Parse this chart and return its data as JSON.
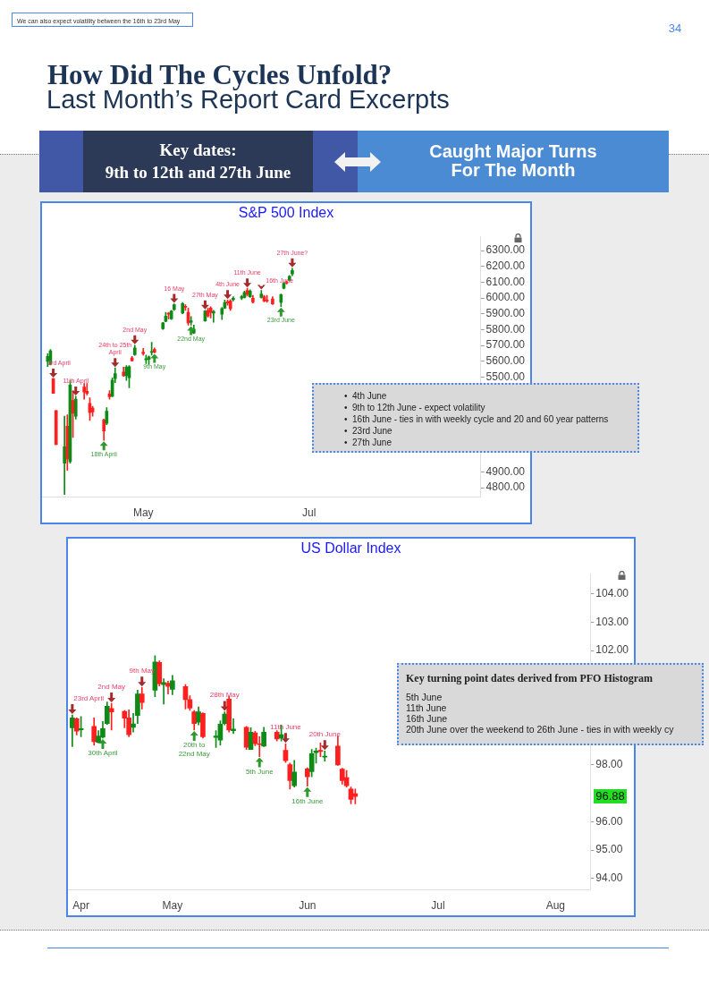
{
  "chart_data": [
    {
      "type": "other",
      "title": "How Did The Cycles Unfold?",
      "subtitle": "Last Month’s Report Card Excerpts",
      "annotations": [
        "We can also expect volatility between the 16th to 23rd May",
        "34",
        "Key dates:\n9th to 12th and 27th June",
        "Caught Major Turns\nFor The Month"
      ]
    },
    {
      "type": "candlestick",
      "title": "S&P 500 Index",
      "x": [
        "--04-01",
        "--04-02",
        "--04-03",
        "--04-04",
        "--04-07",
        "--04-08",
        "--04-09",
        "--04-10",
        "--04-11",
        "--04-14",
        "--04-15",
        "--04-16",
        "--04-17",
        "--04-21",
        "--04-22",
        "--04-23",
        "--04-24",
        "--04-25",
        "--04-28",
        "--04-29",
        "--04-30",
        "--05-01",
        "--05-02",
        "--05-05",
        "--05-06",
        "--05-07",
        "--05-08",
        "--05-09",
        "--05-12",
        "--05-13",
        "--05-14",
        "--05-15",
        "--05-16",
        "--05-19",
        "--05-20",
        "--05-21",
        "--05-22",
        "--05-23",
        "--05-27",
        "--05-28",
        "--05-29",
        "--05-30",
        "--06-02",
        "--06-03",
        "--06-04",
        "--06-05",
        "--06-06",
        "--06-09",
        "--06-10",
        "--06-11",
        "--06-12",
        "--06-13",
        "--06-16",
        "--06-17",
        "--06-18",
        "--06-20",
        "--06-23",
        "--06-24",
        "--06-25",
        "--06-26",
        "--06-27"
      ],
      "ohlc": [
        [
          5599,
          5648,
          5567,
          5630
        ],
        [
          5580,
          5675,
          5576,
          5666
        ],
        [
          5491,
          5491,
          5396,
          5396
        ],
        [
          5288,
          5288,
          5072,
          5072
        ],
        [
          4955,
          5252,
          4757,
          5058
        ],
        [
          5189,
          5261,
          4910,
          4982
        ],
        [
          4964,
          5477,
          4955,
          5450
        ],
        [
          5351,
          5414,
          5117,
          5270
        ],
        [
          5252,
          5378,
          5234,
          5360
        ],
        [
          5436,
          5459,
          5360,
          5405
        ],
        [
          5409,
          5459,
          5387,
          5396
        ],
        [
          5333,
          5369,
          5225,
          5274
        ],
        [
          5303,
          5315,
          5252,
          5279
        ],
        [
          5229,
          5234,
          5099,
          5159
        ],
        [
          5207,
          5306,
          5198,
          5284
        ],
        [
          5393,
          5414,
          5360,
          5375
        ],
        [
          5378,
          5495,
          5375,
          5481
        ],
        [
          5490,
          5558,
          5465,
          5522
        ],
        [
          5531,
          5562,
          5504,
          5508
        ],
        [
          5508,
          5573,
          5478,
          5562
        ],
        [
          5495,
          5573,
          5432,
          5565
        ],
        [
          5621,
          5630,
          5600,
          5603
        ],
        [
          5641,
          5702,
          5637,
          5684
        ],
        [
          5657,
          5681,
          5639,
          5648
        ],
        [
          5609,
          5639,
          5585,
          5616
        ],
        [
          5612,
          5634,
          5580,
          5627
        ],
        [
          5655,
          5720,
          5639,
          5662
        ],
        [
          5675,
          5684,
          5652,
          5657
        ],
        [
          5805,
          5846,
          5801,
          5843
        ],
        [
          5852,
          5909,
          5850,
          5886
        ],
        [
          5904,
          5909,
          5868,
          5897
        ],
        [
          5868,
          5922,
          5864,
          5918
        ],
        [
          5927,
          5963,
          5922,
          5958
        ],
        [
          5904,
          5972,
          5900,
          5965
        ],
        [
          5945,
          5958,
          5922,
          5942
        ],
        [
          5909,
          5936,
          5828,
          5843
        ],
        [
          5846,
          5882,
          5828,
          5855
        ],
        [
          5778,
          5828,
          5774,
          5803
        ],
        [
          5855,
          5922,
          5852,
          5918
        ],
        [
          5922,
          5936,
          5879,
          5886
        ],
        [
          5936,
          5945,
          5873,
          5909
        ],
        [
          5904,
          5922,
          5846,
          5915
        ],
        [
          5897,
          5940,
          5864,
          5933
        ],
        [
          5936,
          5987,
          5933,
          5972
        ],
        [
          5976,
          5987,
          5954,
          5969
        ],
        [
          5981,
          5990,
          5922,
          5933
        ],
        [
          5990,
          6008,
          5981,
          5999
        ],
        [
          5999,
          6017,
          5990,
          6008
        ],
        [
          6004,
          6044,
          5999,
          6035
        ],
        [
          6048,
          6062,
          6012,
          6022
        ],
        [
          6008,
          6053,
          6004,
          6044
        ],
        [
          5999,
          6017,
          5968,
          5976
        ],
        [
          6004,
          6048,
          5999,
          6026
        ],
        [
          6008,
          6017,
          5976,
          5981
        ],
        [
          5986,
          6017,
          5972,
          5981
        ],
        [
          5994,
          6008,
          5958,
          5963
        ],
        [
          5972,
          6026,
          5945,
          6021
        ],
        [
          6062,
          6102,
          6058,
          6094
        ],
        [
          6102,
          6107,
          6089,
          6094
        ],
        [
          6112,
          6143,
          6109,
          6138
        ],
        [
          6152,
          6188,
          6141,
          6174
        ]
      ],
      "colors": [
        "#0e8a16",
        "#0e8a16",
        "#ff1f1f",
        "#ff1f1f",
        "#0e8a16",
        "#ff1f1f",
        "#0e8a16",
        "#ff1f1f",
        "#0e8a16",
        "#ff1f1f",
        "#ff1f1f",
        "#ff1f1f",
        "#ff1f1f",
        "#ff1f1f",
        "#0e8a16",
        "#ff1f1f",
        "#0e8a16",
        "#0e8a16",
        "#ff1f1f",
        "#0e8a16",
        "#0e8a16",
        "#ff1f1f",
        "#0e8a16",
        "#ff1f1f",
        "#0e8a16",
        "#0e8a16",
        "#0e8a16",
        "#ff1f1f",
        "#0e8a16",
        "#0e8a16",
        "#ff1f1f",
        "#0e8a16",
        "#0e8a16",
        "#0e8a16",
        "#ff1f1f",
        "#ff1f1f",
        "#0e8a16",
        "#0e8a16",
        "#0e8a16",
        "#ff1f1f",
        "#ff1f1f",
        "#0e8a16",
        "#0e8a16",
        "#0e8a16",
        "#ff1f1f",
        "#ff1f1f",
        "#0e8a16",
        "#0e8a16",
        "#0e8a16",
        "#ff1f1f",
        "#0e8a16",
        "#ff1f1f",
        "#0e8a16",
        "#ff1f1f",
        "#ff1f1f",
        "#ff1f1f",
        "#0e8a16",
        "#0e8a16",
        "#ff1f1f",
        "#0e8a16",
        "#0e8a16"
      ],
      "xlim": [
        "--03-30",
        "--09-02"
      ],
      "xticks": [
        {
          "value": "--05-05",
          "label": "May"
        },
        {
          "value": "--07-03",
          "label": "Jul"
        }
      ],
      "ylim": [
        4740,
        6390
      ],
      "yticks": [
        {
          "value": 4800,
          "label": "4800.00"
        },
        {
          "value": 4900,
          "label": "4900.00"
        },
        {
          "value": 5500,
          "label": "5500.00"
        },
        {
          "value": 5600,
          "label": "5600.00"
        },
        {
          "value": 5700,
          "label": "5700.00"
        },
        {
          "value": 5800,
          "label": "5800.00"
        },
        {
          "value": 5900,
          "label": "5900.00"
        },
        {
          "value": 6000,
          "label": "6000.00"
        },
        {
          "value": 6100,
          "label": "6100.00"
        },
        {
          "value": 6200,
          "label": "6200.00"
        },
        {
          "value": 6300,
          "label": "6300.00"
        }
      ],
      "annotations": [
        "•  4th June",
        "•  9th to 12th June - expect volatility",
        "•  16th June - ties in with weekly cycle and 20 and 60 year patterns",
        "•  23rd June",
        "•  27th June",
        {
          "text": "3rd April",
          "x": "--04-03",
          "y": 5491
        },
        {
          "text": "11th April",
          "x": "--04-11",
          "y": 5378
        },
        {
          "text": "24th to 25th April",
          "x": "--04-25",
          "y": 5558
        },
        {
          "text": "2nd May",
          "x": "--05-02",
          "y": 5702
        },
        {
          "text": "16 May",
          "x": "--05-16",
          "y": 5963
        },
        {
          "text": "27th May",
          "x": "--05-27",
          "y": 5922
        },
        {
          "text": "4th June",
          "x": "--06-04",
          "y": 5987
        },
        {
          "text": "11th June",
          "x": "--06-11",
          "y": 6062
        },
        {
          "text": "16th June",
          "x": "--06-16",
          "y": 6048
        },
        {
          "text": "27th June?",
          "x": "--06-27",
          "y": 6188
        },
        {
          "text": "18th April",
          "x": "--04-21",
          "y": 5099
        },
        {
          "text": "9th May",
          "x": "--05-09",
          "y": 5652
        },
        {
          "text": "22nd May",
          "x": "--05-22",
          "y": 5828
        },
        {
          "text": "23rd June",
          "x": "--06-23",
          "y": 5945
        }
      ]
    },
    {
      "type": "candlestick",
      "title": "US Dollar Index",
      "x": [
        "--04-23",
        "--04-24",
        "--04-25",
        "--04-28",
        "--04-29",
        "--04-30",
        "--05-01",
        "--05-02",
        "--05-05",
        "--05-06",
        "--05-07",
        "--05-08",
        "--05-09",
        "--05-12",
        "--05-13",
        "--05-14",
        "--05-15",
        "--05-16",
        "--05-19",
        "--05-20",
        "--05-21",
        "--05-22",
        "--05-23",
        "--05-26",
        "--05-27",
        "--05-28",
        "--05-29",
        "--05-30",
        "--06-02",
        "--06-03",
        "--06-04",
        "--06-05",
        "--06-06",
        "--06-09",
        "--06-10",
        "--06-11",
        "--06-12",
        "--06-13",
        "--06-16",
        "--06-17",
        "--06-18",
        "--06-19",
        "--06-20",
        "--06-23",
        "--06-24",
        "--06-25",
        "--06-26",
        "--06-27"
      ],
      "ohlc": [
        [
          99.29,
          99.74,
          98.63,
          99.64
        ],
        [
          99.61,
          99.64,
          99.04,
          99.17
        ],
        [
          99.22,
          99.69,
          98.98,
          99.26
        ],
        [
          99.34,
          99.64,
          98.68,
          98.8
        ],
        [
          98.78,
          99.19,
          98.76,
          99.0
        ],
        [
          98.96,
          99.51,
          98.93,
          99.26
        ],
        [
          99.44,
          100.2,
          99.41,
          100.05
        ],
        [
          99.97,
          100.15,
          99.21,
          99.85
        ],
        [
          99.87,
          99.9,
          99.29,
          99.63
        ],
        [
          99.64,
          99.92,
          98.98,
          99.05
        ],
        [
          99.31,
          99.8,
          99.14,
          99.43
        ],
        [
          99.72,
          100.61,
          99.44,
          100.48
        ],
        [
          100.48,
          100.71,
          99.95,
          100.18
        ],
        [
          100.61,
          101.82,
          100.38,
          101.6
        ],
        [
          101.59,
          101.64,
          100.76,
          100.84
        ],
        [
          100.81,
          101.01,
          100.12,
          100.88
        ],
        [
          100.86,
          100.93,
          100.48,
          100.74
        ],
        [
          100.64,
          101.13,
          100.45,
          100.94
        ],
        [
          100.74,
          100.81,
          99.95,
          100.28
        ],
        [
          100.28,
          100.42,
          99.9,
          99.98
        ],
        [
          99.85,
          99.9,
          99.21,
          99.44
        ],
        [
          99.49,
          100.02,
          99.39,
          99.85
        ],
        [
          99.8,
          99.82,
          98.93,
          98.98
        ],
        [
          98.95,
          99.19,
          98.6,
          99.0
        ],
        [
          98.86,
          99.54,
          98.68,
          99.42
        ],
        [
          99.44,
          99.85,
          99.39,
          99.77
        ],
        [
          100.3,
          100.4,
          99.14,
          99.21
        ],
        [
          99.19,
          99.61,
          99.09,
          99.25
        ],
        [
          99.31,
          99.34,
          98.53,
          98.61
        ],
        [
          98.53,
          99.29,
          98.53,
          99.14
        ],
        [
          99.11,
          99.17,
          98.66,
          98.73
        ],
        [
          98.73,
          98.98,
          98.28,
          98.7
        ],
        [
          98.65,
          99.31,
          98.63,
          99.14
        ],
        [
          99.14,
          99.19,
          98.83,
          98.9
        ],
        [
          98.93,
          99.39,
          98.83,
          99.05
        ],
        [
          98.5,
          98.73,
          98.07,
          98.14
        ],
        [
          98.0,
          98.05,
          97.14,
          97.44
        ],
        [
          97.26,
          98.15,
          97.21,
          97.74
        ],
        [
          97.85,
          97.89,
          97.24,
          97.57
        ],
        [
          97.75,
          98.53,
          97.57,
          98.38
        ],
        [
          98.42,
          98.58,
          98.05,
          98.48
        ],
        [
          98.5,
          98.76,
          98.28,
          98.46
        ],
        [
          98.26,
          98.48,
          98.12,
          98.3
        ],
        [
          98.65,
          99.0,
          97.97,
          97.99
        ],
        [
          97.84,
          97.87,
          97.31,
          97.44
        ],
        [
          97.54,
          97.79,
          97.21,
          97.26
        ],
        [
          97.14,
          97.21,
          96.62,
          96.78
        ],
        [
          96.98,
          97.14,
          96.62,
          96.88
        ]
      ],
      "colors": [
        "#0e8a16",
        "#ff1f1f",
        "#0e8a16",
        "#ff1f1f",
        "#0e8a16",
        "#0e8a16",
        "#0e8a16",
        "#ff1f1f",
        "#ff1f1f",
        "#ff1f1f",
        "#0e8a16",
        "#0e8a16",
        "#ff1f1f",
        "#0e8a16",
        "#ff1f1f",
        "#0e8a16",
        "#ff1f1f",
        "#0e8a16",
        "#ff1f1f",
        "#ff1f1f",
        "#ff1f1f",
        "#0e8a16",
        "#ff1f1f",
        "#0e8a16",
        "#0e8a16",
        "#0e8a16",
        "#ff1f1f",
        "#0e8a16",
        "#ff1f1f",
        "#0e8a16",
        "#ff1f1f",
        "#ff1f1f",
        "#0e8a16",
        "#ff1f1f",
        "#0e8a16",
        "#ff1f1f",
        "#ff1f1f",
        "#0e8a16",
        "#ff1f1f",
        "#0e8a16",
        "#0e8a16",
        "#ff1f1f",
        "#0e8a16",
        "#ff1f1f",
        "#ff1f1f",
        "#ff1f1f",
        "#ff1f1f",
        "#ff1f1f"
      ],
      "xlim": [
        "--04-22",
        "--08-20"
      ],
      "xticks": [
        {
          "value": "--04-25",
          "label": "Apr"
        },
        {
          "value": "--05-16",
          "label": "May"
        },
        {
          "value": "--06-16",
          "label": "Jun"
        },
        {
          "value": "--07-16",
          "label": "Jul"
        },
        {
          "value": "--08-12",
          "label": "Aug"
        }
      ],
      "ylim": [
        93.6,
        104.7
      ],
      "yticks": [
        {
          "value": 94,
          "label": "94.00"
        },
        {
          "value": 95,
          "label": "95.00"
        },
        {
          "value": 96,
          "label": "96.00"
        },
        {
          "value": 98,
          "label": "98.00"
        },
        {
          "value": 102,
          "label": "102.00"
        },
        {
          "value": 103,
          "label": "103.00"
        },
        {
          "value": 104,
          "label": "104.00"
        }
      ],
      "annotations": [
        "Key turning point dates derived from PFO Histogram",
        "5th June",
        "11th June",
        "16th June",
        "20th June over the weekend to 26th June - ties in with weekly cy",
        "96.88",
        {
          "text": "23rd April",
          "x": "--04-23",
          "y": 99.74
        },
        {
          "text": "2nd May",
          "x": "--05-02",
          "y": 100.15
        },
        {
          "text": "9th May",
          "x": "--05-09",
          "y": 100.71
        },
        {
          "text": "28th May",
          "x": "--05-28",
          "y": 99.85
        },
        {
          "text": "11th June",
          "x": "--06-11",
          "y": 98.73
        },
        {
          "text": "20th June",
          "x": "--06-20",
          "y": 98.48
        },
        {
          "text": "30th April",
          "x": "--04-30",
          "y": 98.93
        },
        {
          "text": "20th to 22nd May",
          "x": "--05-21",
          "y": 99.21
        },
        {
          "text": "5th June",
          "x": "--06-05",
          "y": 98.28
        },
        {
          "text": "16th June",
          "x": "--06-16",
          "y": 97.24
        }
      ]
    }
  ]
}
